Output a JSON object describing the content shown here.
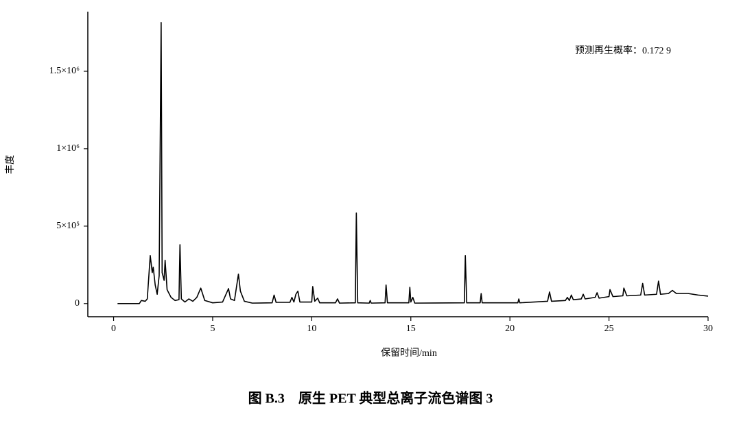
{
  "chart_data": {
    "type": "line",
    "title": "图 B.3　原生 PET 典型总离子流色谱图 3",
    "xlabel": "保留时间/min",
    "ylabel": "丰度",
    "annotation": "预测再生概率：0.172 9",
    "color": "#000000",
    "xlim": [
      -1.3,
      30
    ],
    "ylim": [
      -85000,
      1885000
    ],
    "xticks": [
      0,
      5,
      10,
      15,
      20,
      25,
      30
    ],
    "yticks": [
      0,
      {
        "value": 500000,
        "label": "5×10⁵"
      },
      {
        "value": 1000000,
        "label": "1×10⁶"
      },
      {
        "value": 1500000,
        "label": "1.5×10⁶"
      }
    ],
    "x": [
      0.2,
      1.3,
      1.4,
      1.6,
      1.7,
      1.85,
      1.95,
      2.0,
      2.1,
      2.2,
      2.3,
      2.4,
      2.45,
      2.55,
      2.6,
      2.7,
      2.9,
      3.1,
      3.3,
      3.35,
      3.42,
      3.6,
      3.8,
      4.0,
      4.2,
      4.4,
      4.6,
      5.0,
      5.5,
      5.8,
      5.9,
      6.1,
      6.3,
      6.4,
      6.6,
      7.0,
      8.0,
      8.1,
      8.2,
      8.9,
      9.0,
      9.1,
      9.2,
      9.3,
      9.4,
      10.0,
      10.05,
      10.15,
      10.3,
      10.4,
      11.2,
      11.3,
      11.4,
      12.2,
      12.25,
      12.32,
      12.9,
      12.95,
      13.0,
      13.7,
      13.75,
      13.82,
      14.9,
      14.95,
      15.0,
      15.1,
      15.2,
      17.7,
      17.75,
      17.82,
      18.5,
      18.55,
      18.6,
      20.4,
      20.45,
      20.5,
      21.9,
      22.0,
      22.1,
      22.8,
      22.9,
      23.0,
      23.1,
      23.2,
      23.6,
      23.7,
      23.8,
      24.3,
      24.4,
      24.5,
      25.0,
      25.05,
      25.2,
      25.7,
      25.75,
      25.9,
      26.6,
      26.7,
      26.8,
      27.4,
      27.5,
      27.6,
      28.0,
      28.2,
      28.4,
      29.0,
      29.5,
      30.0
    ],
    "values": [
      0,
      0,
      20000,
      15000,
      30000,
      310000,
      200000,
      235000,
      120000,
      60000,
      180000,
      1815000,
      200000,
      150000,
      280000,
      90000,
      40000,
      20000,
      25000,
      380000,
      30000,
      10000,
      30000,
      15000,
      40000,
      100000,
      20000,
      5000,
      10000,
      97000,
      30000,
      20000,
      190000,
      80000,
      15000,
      3000,
      5000,
      55000,
      8000,
      8000,
      40000,
      10000,
      60000,
      80000,
      10000,
      10000,
      110000,
      15000,
      35000,
      5000,
      5000,
      30000,
      3000,
      5000,
      585000,
      5000,
      3000,
      20000,
      3000,
      5000,
      120000,
      5000,
      5000,
      105000,
      10000,
      40000,
      3000,
      5000,
      310000,
      5000,
      5000,
      65000,
      5000,
      5000,
      30000,
      5000,
      15000,
      75000,
      15000,
      20000,
      40000,
      20000,
      55000,
      25000,
      30000,
      60000,
      30000,
      40000,
      70000,
      35000,
      45000,
      90000,
      45000,
      50000,
      100000,
      50000,
      55000,
      130000,
      55000,
      60000,
      145000,
      60000,
      65000,
      85000,
      65000,
      65000,
      55000,
      48000
    ]
  }
}
